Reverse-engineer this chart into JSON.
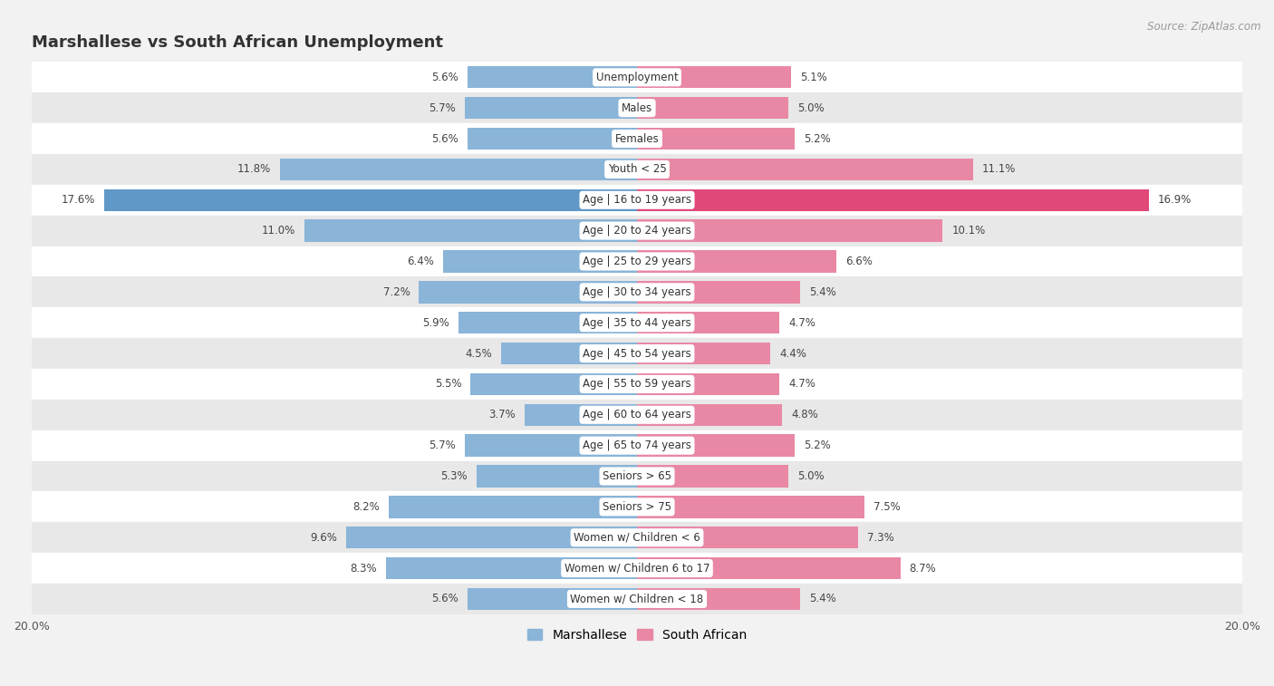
{
  "title": "Marshallese vs South African Unemployment",
  "source": "Source: ZipAtlas.com",
  "categories": [
    "Unemployment",
    "Males",
    "Females",
    "Youth < 25",
    "Age | 16 to 19 years",
    "Age | 20 to 24 years",
    "Age | 25 to 29 years",
    "Age | 30 to 34 years",
    "Age | 35 to 44 years",
    "Age | 45 to 54 years",
    "Age | 55 to 59 years",
    "Age | 60 to 64 years",
    "Age | 65 to 74 years",
    "Seniors > 65",
    "Seniors > 75",
    "Women w/ Children < 6",
    "Women w/ Children 6 to 17",
    "Women w/ Children < 18"
  ],
  "marshallese": [
    5.6,
    5.7,
    5.6,
    11.8,
    17.6,
    11.0,
    6.4,
    7.2,
    5.9,
    4.5,
    5.5,
    3.7,
    5.7,
    5.3,
    8.2,
    9.6,
    8.3,
    5.6
  ],
  "south_african": [
    5.1,
    5.0,
    5.2,
    11.1,
    16.9,
    10.1,
    6.6,
    5.4,
    4.7,
    4.4,
    4.7,
    4.8,
    5.2,
    5.0,
    7.5,
    7.3,
    8.7,
    5.4
  ],
  "marshallese_color": "#8ab4d8",
  "south_african_color": "#e888a4",
  "highlight_marshallese_color": "#6098c8",
  "highlight_south_african_color": "#e04878",
  "background_color": "#f2f2f2",
  "row_color_odd": "#ffffff",
  "row_color_even": "#e8e8e8",
  "xlim": 20.0,
  "legend_marshallese": "Marshallese",
  "legend_south_african": "South African",
  "bar_height": 0.72
}
